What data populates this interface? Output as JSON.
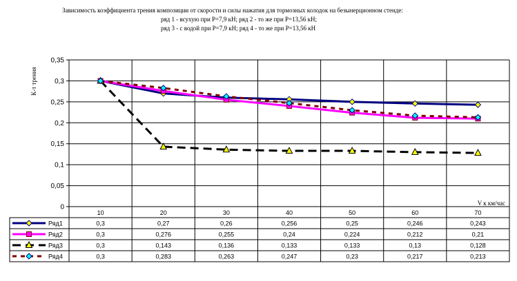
{
  "chart_data": {
    "type": "line",
    "title_lines": [
      "Зависимость коэффициента трения композиции от скорости и силы нажатия для тормозных колодок на безынерционном стенде:",
      "ряд 1 - всухую при P=7,9 кН; ряд 2 - то же при P=13,56 кН;",
      "ряд 3 - с водой при P=7,9 кН; ряд 4 - то же при P=13,56 кН"
    ],
    "ylabel": "К-т трения",
    "xlabel": "V к км/час",
    "x": [
      10,
      20,
      30,
      40,
      50,
      60,
      70
    ],
    "x_tick_labels": [
      "10",
      "20",
      "30",
      "40",
      "50",
      "60",
      "70"
    ],
    "y_tick_labels": [
      "0",
      "0,05",
      "0,1",
      "0,15",
      "0,2",
      "0,25",
      "0,3",
      "0,35"
    ],
    "ylim": [
      0,
      0.35
    ],
    "grid": true,
    "legend_placement": "data table below plot",
    "series": [
      {
        "name": "Ряд1",
        "values": [
          0.3,
          0.27,
          0.26,
          0.256,
          0.25,
          0.246,
          0.243
        ],
        "labels": [
          "0,3",
          "0,27",
          "0,26",
          "0,256",
          "0,25",
          "0,246",
          "0,243"
        ],
        "color": "#000080",
        "marker": "diamond",
        "marker_color": "#ffff00",
        "dash": "solid"
      },
      {
        "name": "Ряд2",
        "values": [
          0.3,
          0.276,
          0.255,
          0.24,
          0.224,
          0.212,
          0.21
        ],
        "labels": [
          "0,3",
          "0,276",
          "0,255",
          "0,24",
          "0,224",
          "0,212",
          "0,21"
        ],
        "color": "#ff00ff",
        "marker": "square",
        "marker_color": "#ff00ff",
        "dash": "solid"
      },
      {
        "name": "Ряд3",
        "values": [
          0.3,
          0.143,
          0.136,
          0.133,
          0.133,
          0.13,
          0.128
        ],
        "labels": [
          "0,3",
          "0,143",
          "0,136",
          "0,133",
          "0,133",
          "0,13",
          "0,128"
        ],
        "color": "#000000",
        "marker": "triangle",
        "marker_color": "#ffff00",
        "dash": "dashed"
      },
      {
        "name": "Ряд4",
        "values": [
          0.3,
          0.283,
          0.263,
          0.247,
          0.23,
          0.217,
          0.213
        ],
        "labels": [
          "0,3",
          "0,283",
          "0,263",
          "0,247",
          "0,23",
          "0,217",
          "0,213"
        ],
        "color": "#800000",
        "marker": "diamond",
        "marker_color": "#00ffff",
        "dash": "dotted"
      }
    ]
  }
}
